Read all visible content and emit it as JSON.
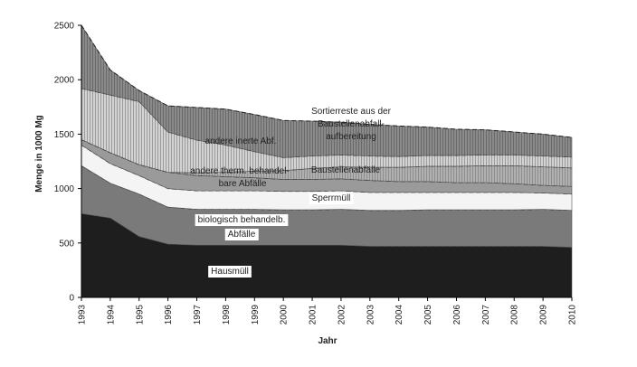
{
  "chart_data": {
    "type": "area",
    "stacked": true,
    "xlabel": "Jahr",
    "ylabel": "Menge in 1000 Mg",
    "ylim": [
      0,
      2500
    ],
    "yticks": [
      0,
      500,
      1000,
      1500,
      2000,
      2500
    ],
    "x": [
      "1993",
      "1994",
      "1995",
      "1996",
      "1997",
      "1998",
      "1999",
      "2000",
      "2001",
      "2002",
      "2003",
      "2004",
      "2005",
      "2006",
      "2007",
      "2008",
      "2009",
      "2010"
    ],
    "grid": false,
    "legend": "none",
    "series": [
      {
        "name": "Hausmüll",
        "color": "#1e1e1e",
        "values": [
          770,
          730,
          560,
          490,
          480,
          480,
          480,
          480,
          480,
          480,
          470,
          470,
          470,
          470,
          470,
          470,
          470,
          460
        ]
      },
      {
        "name": "biologisch behandelb. Abfälle",
        "color": "#7a7a7a",
        "values": [
          440,
          320,
          390,
          340,
          330,
          330,
          330,
          325,
          325,
          330,
          330,
          330,
          335,
          335,
          335,
          335,
          340,
          340
        ]
      },
      {
        "name": "Sperrmüll",
        "color": "#f4f4f4",
        "values": [
          190,
          180,
          170,
          170,
          170,
          170,
          170,
          170,
          170,
          170,
          165,
          165,
          160,
          160,
          160,
          160,
          150,
          150
        ]
      },
      {
        "name": "andere therm. behandelbare Abfälle",
        "color": "#9a9a9a",
        "values": [
          50,
          100,
          100,
          150,
          140,
          130,
          120,
          110,
          110,
          110,
          110,
          100,
          100,
          90,
          90,
          80,
          70,
          70
        ]
      },
      {
        "name": "Baustellenabfälle",
        "color": "#b8b8b8",
        "values": [
          0,
          0,
          0,
          0,
          25,
          40,
          60,
          80,
          100,
          110,
          120,
          130,
          140,
          150,
          155,
          165,
          170,
          170
        ]
      },
      {
        "name": "andere inerte Abf.",
        "color": "#a5a5a5",
        "values": [
          470,
          530,
          580,
          370,
          300,
          250,
          180,
          120,
          115,
          110,
          105,
          100,
          100,
          100,
          100,
          100,
          100,
          100
        ]
      },
      {
        "name": "Sortierreste aus der Baustellenabfall-aufbereitung",
        "color": "#8c8c8c",
        "values": [
          580,
          230,
          100,
          240,
          300,
          330,
          340,
          340,
          320,
          300,
          290,
          280,
          260,
          240,
          230,
          210,
          200,
          180
        ]
      }
    ],
    "annotations": [
      {
        "text": "Sortierreste aus der",
        "series": "Sortierreste aus der Baustellenabfall-aufbereitung"
      },
      {
        "text": "Baustellenabfall-",
        "series": "Sortierreste aus der Baustellenabfall-aufbereitung"
      },
      {
        "text": "aufbereitung",
        "series": "Sortierreste aus der Baustellenabfall-aufbereitung"
      },
      {
        "text": "andere inerte Abf.",
        "series": "andere inerte Abf."
      },
      {
        "text": "andere therm. behandel-",
        "series": "andere therm. behandelbare Abfälle"
      },
      {
        "text": "bare Abfälle",
        "series": "andere therm. behandelbare Abfälle"
      },
      {
        "text": "Baustellenabfälle",
        "series": "Baustellenabfälle"
      },
      {
        "text": "Sperrmüll",
        "series": "Sperrmüll"
      },
      {
        "text": "biologisch behandelb.",
        "series": "biologisch behandelb. Abfälle"
      },
      {
        "text": "Abfälle",
        "series": "biologisch behandelb. Abfälle"
      },
      {
        "text": "Hausmüll",
        "series": "Hausmüll"
      }
    ]
  }
}
